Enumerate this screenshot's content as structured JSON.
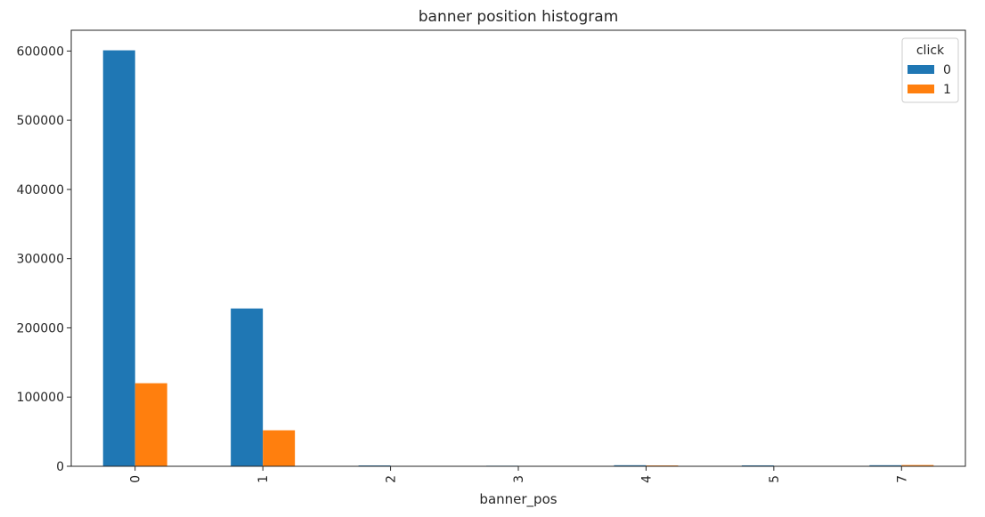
{
  "chart_data": {
    "type": "bar",
    "title": "banner position histogram",
    "xlabel": "banner_pos",
    "ylabel": "",
    "categories": [
      "0",
      "1",
      "2",
      "3",
      "4",
      "5",
      "7"
    ],
    "series": [
      {
        "name": "0",
        "color": "#1f77b4",
        "values": [
          601000,
          228000,
          1200,
          800,
          1500,
          1300,
          1500
        ]
      },
      {
        "name": "1",
        "color": "#ff7f0e",
        "values": [
          120000,
          52000,
          200,
          100,
          1200,
          100,
          1800
        ]
      }
    ],
    "ylim": [
      0,
      630000
    ],
    "yticks": [
      0,
      100000,
      200000,
      300000,
      400000,
      500000,
      600000
    ],
    "ytick_labels": [
      "0",
      "100000",
      "200000",
      "300000",
      "400000",
      "500000",
      "600000"
    ],
    "legend": {
      "title": "click",
      "placement": "top-right"
    },
    "grid": false
  }
}
